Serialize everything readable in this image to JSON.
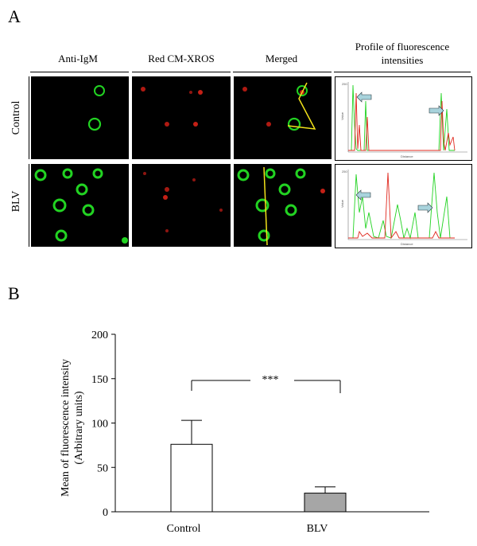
{
  "panel_a": {
    "letter": "A",
    "columns": [
      "Anti-IgM",
      "Red CM-XROS",
      "Merged",
      "Profile of fluorescence intensities"
    ],
    "rows": [
      "Control",
      "BLV"
    ],
    "profile_axis": {
      "y_tick": "250",
      "x_label": "Distance",
      "y_label": "Value"
    },
    "colors": {
      "green": "#22d322",
      "red": "#e0281e",
      "yellow": "#f2e21a",
      "arrow": "#a8d3dc"
    }
  },
  "panel_b": {
    "letter": "B",
    "significance": "***"
  },
  "chart_data": {
    "type": "bar",
    "categories": [
      "Control",
      "BLV"
    ],
    "values": [
      76,
      21
    ],
    "errors": [
      27,
      7
    ],
    "bar_colors": [
      "#ffffff",
      "#a6a6a6"
    ],
    "ylabel": "Mean of fluorescence intensity (Arbitrary units)",
    "ylabel_lines": [
      "Mean of fluorescence intensity",
      "(Arbitrary units)"
    ],
    "ylim": [
      0,
      200
    ],
    "yticks": [
      0,
      50,
      100,
      150,
      200
    ],
    "significance": "***"
  }
}
